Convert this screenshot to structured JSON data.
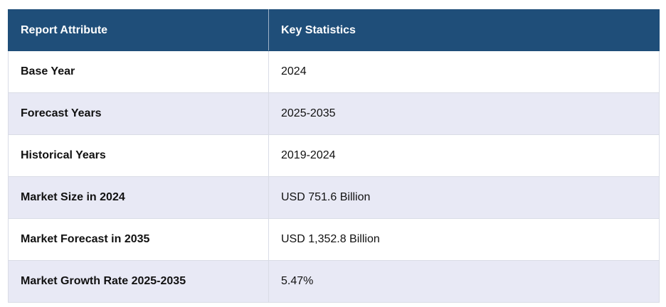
{
  "table": {
    "headers": [
      "Report Attribute",
      "Key Statistics"
    ],
    "rows": [
      {
        "attribute": "Base Year",
        "value": "2024"
      },
      {
        "attribute": "Forecast Years",
        "value": "2025-2035"
      },
      {
        "attribute": "Historical Years",
        "value": "2019-2024"
      },
      {
        "attribute": "Market Size in 2024",
        "value": "USD 751.6 Billion"
      },
      {
        "attribute": "Market Forecast in 2035",
        "value": "USD 1,352.8 Billion"
      },
      {
        "attribute": "Market Growth Rate 2025-2035",
        "value": "5.47%"
      }
    ]
  },
  "colors": {
    "header_bg": "#1f4e79",
    "header_text": "#ffffff",
    "stripe_bg": "#e8e9f5",
    "row_bg": "#ffffff"
  }
}
